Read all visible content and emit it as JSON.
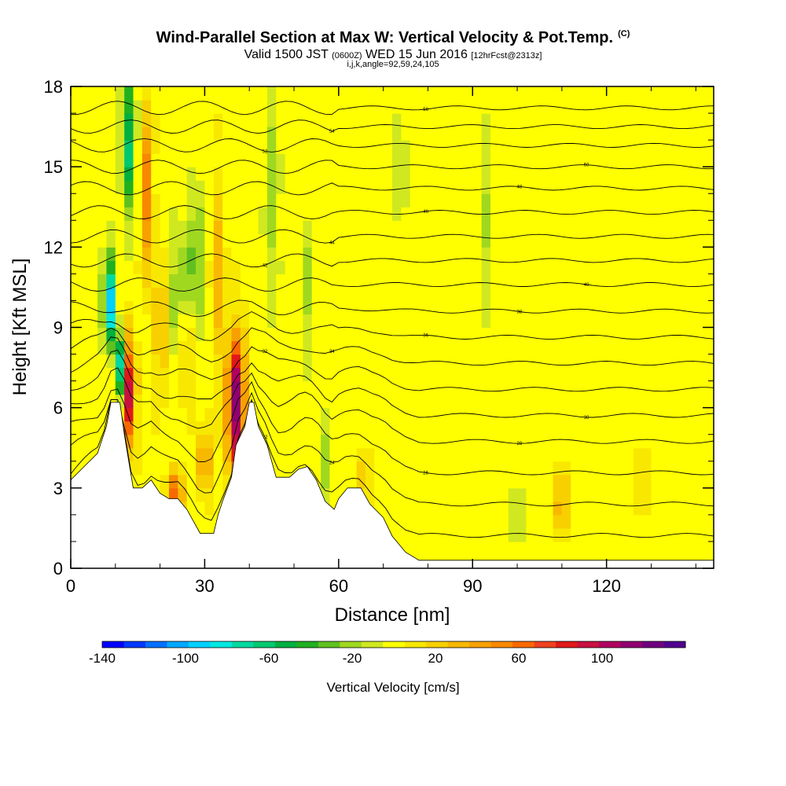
{
  "header": {
    "title": "Wind-Parallel Section at Max W: Vertical Velocity & Pot.Temp.",
    "title_mark": "(C)",
    "valid_a": "Valid 1500 JST ",
    "valid_b": "(0600Z)",
    "valid_c": " WED 15 Jun 2016 ",
    "valid_d": "[12hrFcst@2313z]",
    "indices": "i,j,k,angle=92,59,24,105"
  },
  "chart_data": {
    "type": "heatmap",
    "xlabel": "Distance [nm]",
    "ylabel": "Height [Kft MSL]",
    "xlim": [
      0,
      144
    ],
    "ylim": [
      0,
      18
    ],
    "xticks": [
      0,
      30,
      60,
      90,
      120
    ],
    "yticks": [
      0,
      3,
      6,
      9,
      12,
      15,
      18
    ],
    "colorbar": {
      "title": "Vertical Velocity [cm/s]",
      "ticks": [
        -140,
        -100,
        -60,
        -20,
        20,
        60,
        100
      ],
      "range": [
        -140,
        140
      ],
      "colors": [
        "#0000ff",
        "#0038ff",
        "#0070ff",
        "#00a8ff",
        "#00d0ff",
        "#00e8e0",
        "#00d8a0",
        "#00c870",
        "#00b040",
        "#20b020",
        "#60c020",
        "#a0d820",
        "#d0e820",
        "#ffff00",
        "#f8e800",
        "#f8d000",
        "#f8b800",
        "#f8a000",
        "#f88800",
        "#f86800",
        "#f04020",
        "#e01818",
        "#c81040",
        "#b00060",
        "#900070",
        "#700080",
        "#500090"
      ]
    },
    "terrain": [
      {
        "x": 0,
        "h": 3.3
      },
      {
        "x": 3,
        "h": 3.8
      },
      {
        "x": 6,
        "h": 4.3
      },
      {
        "x": 8,
        "h": 5.3
      },
      {
        "x": 9,
        "h": 6.2
      },
      {
        "x": 11,
        "h": 6.2
      },
      {
        "x": 12,
        "h": 5.0
      },
      {
        "x": 13,
        "h": 4.0
      },
      {
        "x": 14,
        "h": 3.0
      },
      {
        "x": 16,
        "h": 3.0
      },
      {
        "x": 18,
        "h": 3.3
      },
      {
        "x": 20,
        "h": 2.8
      },
      {
        "x": 22,
        "h": 2.6
      },
      {
        "x": 24,
        "h": 2.6
      },
      {
        "x": 26,
        "h": 2.2
      },
      {
        "x": 27,
        "h": 1.9
      },
      {
        "x": 29,
        "h": 1.3
      },
      {
        "x": 32,
        "h": 1.3
      },
      {
        "x": 33,
        "h": 2.0
      },
      {
        "x": 34,
        "h": 2.5
      },
      {
        "x": 36,
        "h": 3.4
      },
      {
        "x": 37,
        "h": 4.6
      },
      {
        "x": 39,
        "h": 5.3
      },
      {
        "x": 40,
        "h": 6.2
      },
      {
        "x": 41,
        "h": 6.2
      },
      {
        "x": 42,
        "h": 5.3
      },
      {
        "x": 44,
        "h": 4.6
      },
      {
        "x": 46,
        "h": 3.4
      },
      {
        "x": 49,
        "h": 3.4
      },
      {
        "x": 51,
        "h": 3.7
      },
      {
        "x": 53,
        "h": 3.8
      },
      {
        "x": 55,
        "h": 3.3
      },
      {
        "x": 57,
        "h": 2.5
      },
      {
        "x": 59,
        "h": 2.2
      },
      {
        "x": 60,
        "h": 2.6
      },
      {
        "x": 62,
        "h": 3.0
      },
      {
        "x": 65,
        "h": 3.0
      },
      {
        "x": 67,
        "h": 2.4
      },
      {
        "x": 70,
        "h": 1.9
      },
      {
        "x": 72,
        "h": 1.2
      },
      {
        "x": 75,
        "h": 0.6
      },
      {
        "x": 78,
        "h": 0.3
      },
      {
        "x": 144,
        "h": 0.3
      }
    ],
    "theta_contours": [
      {
        "label": "22",
        "y0": 1.0
      },
      {
        "label": "24",
        "y0": 2.2
      },
      {
        "label": "26",
        "y0": 3.4
      },
      {
        "label": "28",
        "y0": 4.6
      },
      {
        "label": "30",
        "y0": 5.6
      },
      {
        "label": "32",
        "y0": 6.6
      },
      {
        "label": "34",
        "y0": 7.6
      },
      {
        "label": "36",
        "y0": 8.6
      },
      {
        "label": "38",
        "y0": 9.6
      },
      {
        "label": "40",
        "y0": 10.6
      },
      {
        "label": "42",
        "y0": 11.5
      },
      {
        "label": "44",
        "y0": 12.4
      },
      {
        "label": "46",
        "y0": 13.3
      },
      {
        "label": "48",
        "y0": 14.2
      },
      {
        "label": "50",
        "y0": 15.0
      },
      {
        "label": "52",
        "y0": 15.8
      },
      {
        "label": "54",
        "y0": 16.5
      },
      {
        "label": "56",
        "y0": 17.2
      }
    ],
    "w_features": [
      {
        "x": 37,
        "y": 6.0,
        "w": 120,
        "sx": 2.0,
        "sy": 2.6
      },
      {
        "x": 13,
        "y": 6.5,
        "w": 95,
        "sx": 1.5,
        "sy": 2.0
      },
      {
        "x": 17,
        "y": 14.0,
        "w": 55,
        "sx": 1.4,
        "sy": 3.0
      },
      {
        "x": 8.5,
        "y": 10.0,
        "w": -110,
        "sx": 1.2,
        "sy": 1.6
      },
      {
        "x": 11,
        "y": 7.5,
        "w": -80,
        "sx": 0.9,
        "sy": 1.2
      },
      {
        "x": 13,
        "y": 16.0,
        "w": -60,
        "sx": 1.4,
        "sy": 2.6
      },
      {
        "x": 28,
        "y": 11.5,
        "w": -45,
        "sx": 1.4,
        "sy": 2.4
      },
      {
        "x": 24,
        "y": 10.5,
        "w": -40,
        "sx": 1.2,
        "sy": 2.2
      },
      {
        "x": 23.5,
        "y": 2.8,
        "w": 70,
        "sx": 1.8,
        "sy": 0.8
      },
      {
        "x": 30,
        "y": 4.0,
        "w": 40,
        "sx": 2.0,
        "sy": 1.4
      },
      {
        "x": 33,
        "y": 11.0,
        "w": 30,
        "sx": 1.5,
        "sy": 3.5
      },
      {
        "x": 20,
        "y": 9.0,
        "w": 35,
        "sx": 1.4,
        "sy": 2.5
      },
      {
        "x": 26,
        "y": 8.0,
        "w": 30,
        "sx": 1.2,
        "sy": 1.8
      },
      {
        "x": 45,
        "y": 14.0,
        "w": -22,
        "sx": 1.4,
        "sy": 4.0
      },
      {
        "x": 53,
        "y": 10.5,
        "w": -20,
        "sx": 1.0,
        "sy": 2.5
      },
      {
        "x": 57,
        "y": 4.0,
        "w": -25,
        "sx": 1.2,
        "sy": 1.5
      },
      {
        "x": 110,
        "y": 2.6,
        "w": 40,
        "sx": 1.5,
        "sy": 1.4
      },
      {
        "x": 100,
        "y": 2.0,
        "w": -20,
        "sx": 1.2,
        "sy": 1.5
      },
      {
        "x": 93,
        "y": 13.0,
        "w": -18,
        "sx": 1.4,
        "sy": 3.0
      },
      {
        "x": 74,
        "y": 15.0,
        "w": -16,
        "sx": 1.2,
        "sy": 2.5
      },
      {
        "x": 66,
        "y": 3.0,
        "w": 20,
        "sx": 2.0,
        "sy": 1.5
      },
      {
        "x": 128,
        "y": 3.0,
        "w": 14,
        "sx": 2.0,
        "sy": 1.5
      }
    ]
  }
}
